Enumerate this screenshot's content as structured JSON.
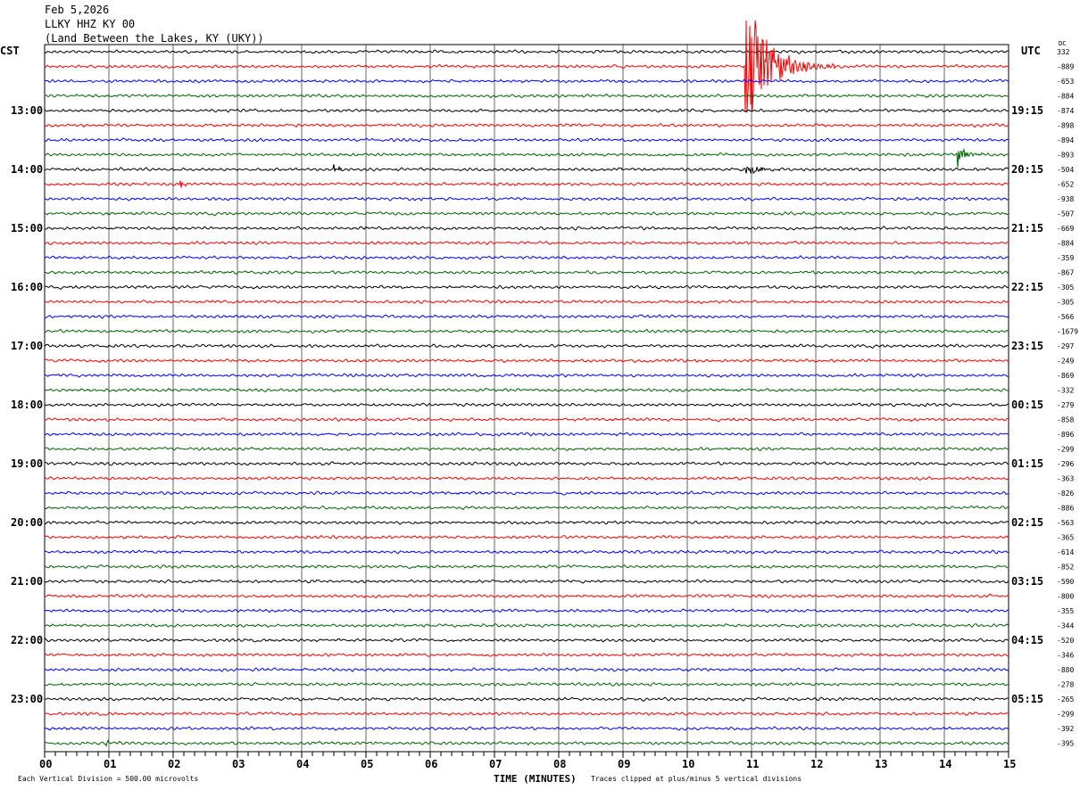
{
  "header": {
    "date": "Feb 5,2026",
    "station": "LLKY HHZ KY 00",
    "location": "(Land Between the Lakes, KY (UKY))"
  },
  "left_tz": "CST",
  "right_tz": "UTC",
  "dc_label": "DC",
  "footer": {
    "scale": "Each Vertical Division =  500.00 microvolts",
    "xlabel": "TIME (MINUTES)",
    "clip_note": "Traces clipped at plus/minus 5 vertical divisions"
  },
  "chart_data": {
    "type": "line",
    "title": "LLKY HHZ KY 00 helicorder",
    "xlabel": "TIME (MINUTES)",
    "xlim": [
      0,
      15
    ],
    "x_ticks": [
      "00",
      "01",
      "02",
      "03",
      "04",
      "05",
      "06",
      "07",
      "08",
      "09",
      "10",
      "11",
      "12",
      "13",
      "14",
      "15"
    ],
    "rows": 48,
    "row_minutes": 15,
    "trace_colors": [
      "#000000",
      "#ff0000",
      "#0000ff",
      "#006400"
    ],
    "left_hour_labels": [
      "13:00",
      "14:00",
      "15:00",
      "16:00",
      "17:00",
      "18:00",
      "19:00",
      "20:00",
      "21:00",
      "22:00",
      "23:00"
    ],
    "right_hour_labels": [
      "19:15",
      "20:15",
      "21:15",
      "22:15",
      "23:15",
      "00:15",
      "01:15",
      "02:15",
      "03:15",
      "04:15",
      "05:15"
    ],
    "dc_offsets": [
      "332",
      "-889",
      "-653",
      "-884",
      "-874",
      "-898",
      "-894",
      "-893",
      "-504",
      "-652",
      "-938",
      "-507",
      "-669",
      "-884",
      "-359",
      "-867",
      "-305",
      "-305",
      "-566",
      "-1679",
      "-297",
      "-249",
      "-869",
      "-332",
      "-279",
      "-858",
      "-896",
      "-299",
      "-296",
      "-363",
      "-826",
      "-886",
      "-563",
      "-365",
      "-614",
      "-852",
      "-590",
      "-800",
      "-355",
      "-344",
      "-520",
      "-346",
      "-880",
      "-278",
      "-265",
      "-299",
      "-392",
      "-395"
    ],
    "events": [
      {
        "row": 1,
        "minute": 10.9,
        "amplitude": 5,
        "duration_min": 1.4
      },
      {
        "row": 7,
        "minute": 14.2,
        "amplitude": 0.6,
        "duration_min": 0.6
      },
      {
        "row": 8,
        "minute": 10.9,
        "amplitude": 0.45,
        "duration_min": 0.8
      },
      {
        "row": 8,
        "minute": 4.5,
        "amplitude": 0.25,
        "duration_min": 0.4
      },
      {
        "row": 9,
        "minute": 2.1,
        "amplitude": 0.35,
        "duration_min": 0.3
      },
      {
        "row": 47,
        "minute": 0.95,
        "amplitude": 0.6,
        "duration_min": 0.1
      }
    ]
  }
}
